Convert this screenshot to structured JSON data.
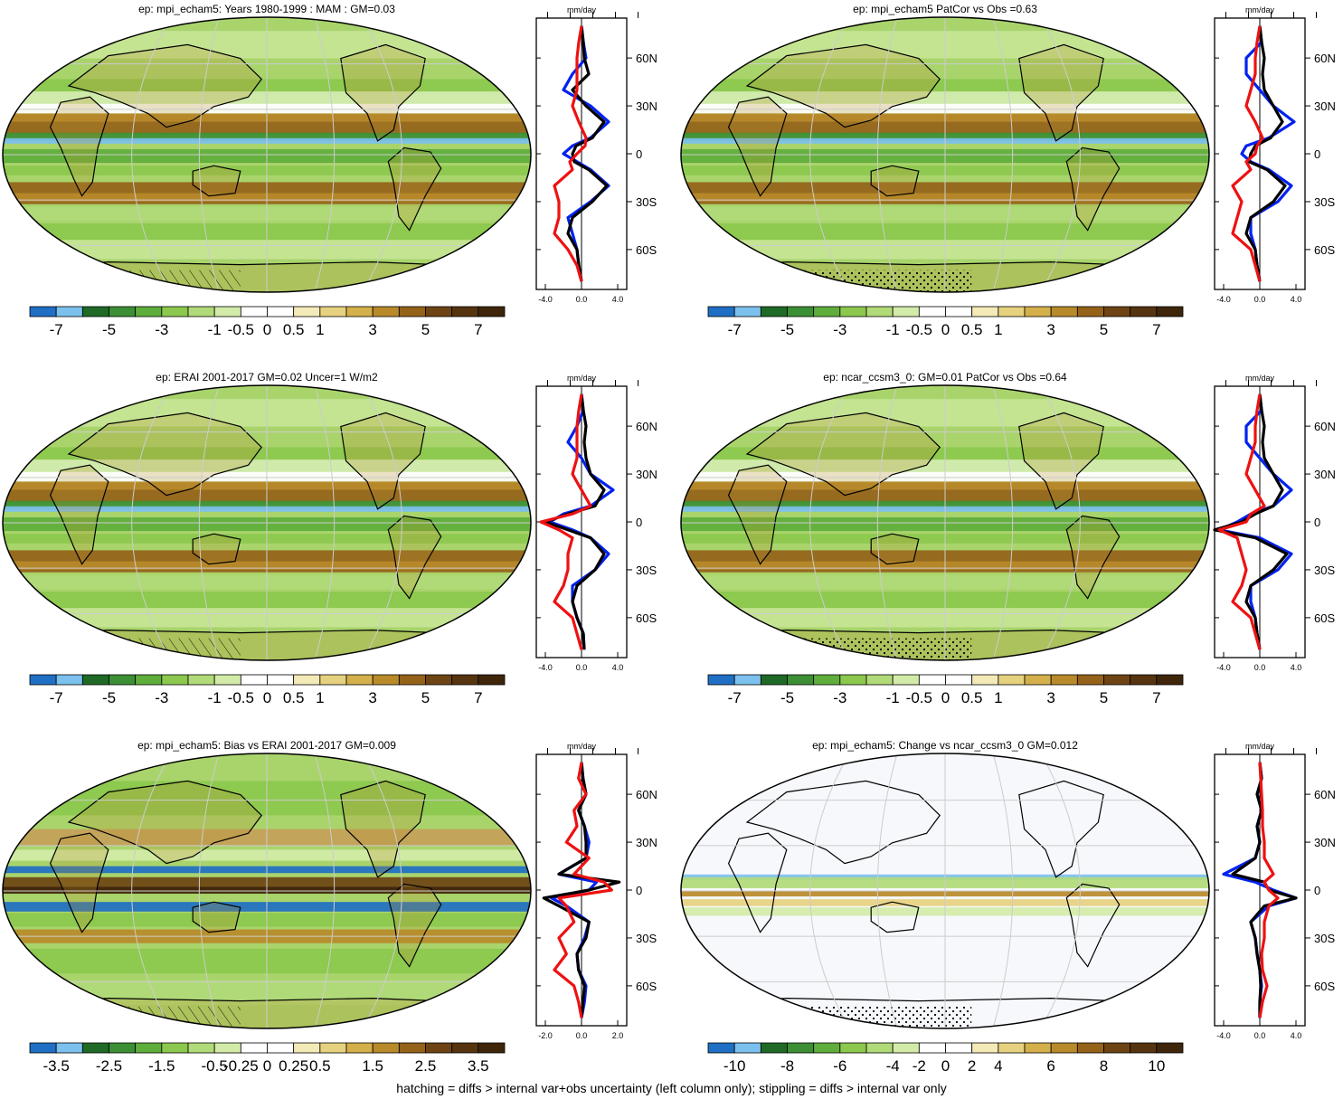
{
  "colors": {
    "palette": [
      "#1f6fc4",
      "#7cc0ee",
      "#1e6a26",
      "#3c8f34",
      "#5fae3c",
      "#8cc84e",
      "#b1da78",
      "#d3eba8",
      "#ffffff",
      "#ffffff",
      "#f3eab8",
      "#e6d17f",
      "#d4b04a",
      "#b98a2a",
      "#95621a",
      "#6e4414",
      "#563410",
      "#3f250a"
    ],
    "model_line": "#0022ee",
    "obs_line": "#000000",
    "diff_line": "#ee1111"
  },
  "footnote": "hatching = diffs > internal var+obs uncertainty (left column only); stippling = diffs > internal var only",
  "chart_data": [
    {
      "type": "heatmap",
      "title": "ep: mpi_echam5: Years 1980-1999 : MAM : GM=0.03",
      "colorbar_labels": [
        "-7",
        "-5",
        "-3",
        "-1",
        "-0.5",
        "0",
        "0.5",
        "1",
        "3",
        "5",
        "7"
      ],
      "pattern": "full",
      "profile": {
        "unit": "mm/day",
        "x_ticks": [
          "-4.0",
          "0.0",
          "4.0"
        ],
        "xlim": [
          -5,
          5
        ],
        "lat_labels": [
          "60N",
          "30N",
          "0",
          "30S",
          "60S"
        ],
        "lat": [
          80,
          70,
          60,
          50,
          40,
          30,
          20,
          10,
          5,
          0,
          -5,
          -10,
          -20,
          -30,
          -40,
          -50,
          -60,
          -70,
          -80
        ],
        "series": [
          {
            "color": "blue",
            "values": [
              0,
              0.2,
              0.5,
              -1.0,
              -2.0,
              1.0,
              3.0,
              1.0,
              -1.0,
              -2.0,
              -0.5,
              1.0,
              3.0,
              1.0,
              -1.5,
              -1.0,
              -0.5,
              -0.3,
              0
            ]
          },
          {
            "color": "black",
            "values": [
              0,
              0.2,
              0.3,
              0.8,
              -1.0,
              0.5,
              2.5,
              1.2,
              -0.6,
              -1.0,
              -0.8,
              0.8,
              2.8,
              1.2,
              -1.0,
              -1.5,
              -0.5,
              -0.3,
              0
            ]
          },
          {
            "color": "red",
            "values": [
              0,
              -0.3,
              -0.5,
              -0.5,
              -0.5,
              -1.0,
              -0.3,
              0.5,
              0.4,
              -0.5,
              -1.3,
              -1.0,
              -3.0,
              -2.5,
              -2.5,
              -3.0,
              -1.5,
              -0.5,
              0
            ]
          }
        ]
      }
    },
    {
      "type": "heatmap",
      "title": "ep: mpi_echam5 PatCor vs Obs =0.63",
      "colorbar_labels": [
        "-7",
        "-5",
        "-3",
        "-1",
        "-0.5",
        "0",
        "0.5",
        "1",
        "3",
        "5",
        "7"
      ],
      "pattern": "full",
      "profile": {
        "unit": "mm/day",
        "x_ticks": [
          "-4.0",
          "0.0",
          "4.0"
        ],
        "xlim": [
          -5,
          5
        ],
        "lat_labels": [
          "60N",
          "30N",
          "0",
          "30S",
          "60S"
        ],
        "lat": [
          80,
          70,
          60,
          50,
          40,
          30,
          20,
          10,
          5,
          0,
          -5,
          -10,
          -20,
          -30,
          -40,
          -50,
          -60,
          -70,
          -80
        ],
        "series": [
          {
            "color": "blue",
            "values": [
              0,
              0.2,
              -1.5,
              -1.5,
              0,
              1.5,
              3.8,
              1.0,
              -1.5,
              -2.0,
              -1.0,
              1.0,
              3.5,
              2.0,
              -1.0,
              -1.0,
              -0.5,
              -0.3,
              0
            ]
          },
          {
            "color": "black",
            "values": [
              0,
              0.2,
              0.5,
              0.3,
              0.5,
              1.5,
              2.5,
              1.2,
              -0.5,
              -1.0,
              -1.2,
              0.8,
              2.8,
              1.5,
              -1.0,
              -1.5,
              -0.5,
              -0.3,
              0
            ]
          },
          {
            "color": "red",
            "values": [
              0,
              -0.3,
              -0.5,
              -0.5,
              -1.0,
              -1.5,
              -0.5,
              0.3,
              -0.3,
              -0.5,
              -1.5,
              -1.0,
              -3.0,
              -2.0,
              -2.5,
              -3.0,
              -1.0,
              -0.5,
              0
            ]
          }
        ]
      }
    },
    {
      "type": "heatmap",
      "title": "ep: ERAI 2001-2017 GM=0.02 Uncer=1 W/m2",
      "colorbar_labels": [
        "-7",
        "-5",
        "-3",
        "-1",
        "-0.5",
        "0",
        "0.5",
        "1",
        "3",
        "5",
        "7"
      ],
      "pattern": "full",
      "profile": {
        "unit": "mm/day",
        "x_ticks": [
          "-4.0",
          "0.0",
          "4.0"
        ],
        "xlim": [
          -5,
          5
        ],
        "lat_labels": [
          "60N",
          "30N",
          "0",
          "30S",
          "60S"
        ],
        "lat": [
          80,
          70,
          60,
          50,
          40,
          30,
          20,
          10,
          5,
          0,
          -5,
          -10,
          -20,
          -30,
          -40,
          -50,
          -60,
          -70,
          -80
        ],
        "series": [
          {
            "color": "blue",
            "values": [
              0,
              0.2,
              -0.5,
              -1.5,
              0,
              1.0,
              3.5,
              1.0,
              -2.0,
              -3.5,
              -1.0,
              1.0,
              3.0,
              1.5,
              -1.0,
              -1.0,
              -0.5,
              0.2,
              0.3
            ]
          },
          {
            "color": "black",
            "values": [
              0,
              0.2,
              0.5,
              0.3,
              0.5,
              1.0,
              2.5,
              1.5,
              -1.5,
              -4.0,
              -1.5,
              1.0,
              2.5,
              1.5,
              -0.5,
              -1.0,
              -0.5,
              0.2,
              0.3
            ]
          },
          {
            "color": "red",
            "values": [
              0,
              -0.3,
              -0.5,
              -0.5,
              -0.5,
              -1.0,
              0,
              1.0,
              -1.0,
              -4.5,
              -2.5,
              -1.0,
              -1.5,
              -1.5,
              -2.0,
              -3.0,
              -1.0,
              -0.5,
              0
            ]
          }
        ]
      }
    },
    {
      "type": "heatmap",
      "title": "ep: ncar_ccsm3_0: GM=0.01 PatCor vs Obs =0.64",
      "colorbar_labels": [
        "-7",
        "-5",
        "-3",
        "-1",
        "-0.5",
        "0",
        "0.5",
        "1",
        "3",
        "5",
        "7"
      ],
      "pattern": "full",
      "profile": {
        "unit": "mm/day",
        "x_ticks": [
          "-4.0",
          "0.0",
          "4.0"
        ],
        "xlim": [
          -5,
          5
        ],
        "lat_labels": [
          "60N",
          "30N",
          "0",
          "30S",
          "60S"
        ],
        "lat": [
          80,
          70,
          60,
          50,
          40,
          30,
          20,
          10,
          5,
          0,
          -5,
          -10,
          -20,
          -30,
          -40,
          -50,
          -60,
          -70,
          -80
        ],
        "series": [
          {
            "color": "blue",
            "values": [
              0,
              0.2,
              -1.5,
              -1.5,
              0,
              1.5,
              3.5,
              1.5,
              -1.0,
              -2.5,
              -4.5,
              0,
              3.5,
              2.0,
              -1.0,
              -1.0,
              -0.5,
              -0.3,
              0
            ]
          },
          {
            "color": "black",
            "values": [
              0,
              0.2,
              0.5,
              0.3,
              0.5,
              1.5,
              2.5,
              1.5,
              -0.5,
              -2.0,
              -5.0,
              -0.5,
              3.0,
              1.5,
              -1.0,
              -1.5,
              -0.5,
              -0.3,
              0
            ]
          },
          {
            "color": "red",
            "values": [
              0,
              -0.3,
              -0.5,
              -0.5,
              -1.0,
              -1.5,
              -0.5,
              0.5,
              -1.0,
              -1.5,
              -4.5,
              -2.5,
              -2.0,
              -1.5,
              -2.0,
              -3.0,
              -1.0,
              -0.5,
              0
            ]
          }
        ]
      }
    },
    {
      "type": "heatmap",
      "title": "ep: mpi_echam5: Bias vs ERAI 2001-2017 GM=0.009",
      "colorbar_labels": [
        "-3.5",
        "-2.5",
        "-1.5",
        "-0.5",
        "-0.25",
        "0",
        "0.25",
        "0.5",
        "1.5",
        "2.5",
        "3.5"
      ],
      "pattern": "bias",
      "profile": {
        "unit": "mm/day",
        "x_ticks": [
          "-2.0",
          "0.0",
          "2.0"
        ],
        "xlim": [
          -3,
          3
        ],
        "lat_labels": [
          "60N",
          "30N",
          "0",
          "30S",
          "60S"
        ],
        "lat": [
          80,
          70,
          60,
          50,
          40,
          30,
          20,
          10,
          5,
          0,
          -5,
          -10,
          -20,
          -30,
          -40,
          -50,
          -60,
          -70,
          -80
        ],
        "series": [
          {
            "color": "blue",
            "values": [
              0,
              0.1,
              0.3,
              -0.2,
              0.2,
              0.5,
              0.3,
              -1.5,
              1.0,
              0.5,
              -2.0,
              -1.0,
              0.5,
              0.2,
              -0.3,
              -0.2,
              0.3,
              0.2,
              0
            ]
          },
          {
            "color": "black",
            "values": [
              0,
              0.1,
              0.3,
              -0.2,
              0.2,
              0.3,
              0.3,
              -1.5,
              2.5,
              0.5,
              -2.5,
              -1.5,
              0.5,
              0.3,
              -0.3,
              -0.2,
              0.2,
              0.1,
              0
            ]
          },
          {
            "color": "red",
            "values": [
              0,
              -0.2,
              0.3,
              -0.5,
              -0.3,
              -1.0,
              0.5,
              -0.5,
              1.5,
              2.0,
              -1.5,
              -1.0,
              -0.5,
              -1.5,
              -1.0,
              -1.8,
              -0.5,
              -0.2,
              0
            ]
          }
        ]
      }
    },
    {
      "type": "heatmap",
      "title": "ep: mpi_echam5: Change vs ncar_ccsm3_0 GM=0.012",
      "colorbar_labels": [
        "-10",
        "-8",
        "-6",
        "-4",
        "-2",
        "0",
        "2",
        "4",
        "6",
        "8",
        "10"
      ],
      "pattern": "change",
      "profile": {
        "unit": "mm/day",
        "x_ticks": [
          "-4.0",
          "0.0",
          "4.0"
        ],
        "xlim": [
          -5,
          5
        ],
        "lat_labels": [
          "60N",
          "30N",
          "0",
          "30S",
          "60S"
        ],
        "lat": [
          80,
          70,
          60,
          50,
          40,
          30,
          20,
          10,
          5,
          0,
          -5,
          -10,
          -20,
          -30,
          -40,
          -50,
          -60,
          -70,
          -80
        ],
        "series": [
          {
            "color": "blue",
            "values": [
              0,
              0.2,
              -0.3,
              0.2,
              -0.3,
              0,
              -0.5,
              -4.0,
              -0.5,
              1.5,
              4.0,
              1.0,
              -1.0,
              -0.5,
              -0.3,
              0,
              0.2,
              0,
              0
            ]
          },
          {
            "color": "black",
            "values": [
              0,
              0.2,
              -0.3,
              0.2,
              -0.3,
              0,
              -0.5,
              -3.0,
              0.5,
              1.0,
              4.0,
              0.5,
              -1.0,
              -0.5,
              -0.3,
              0,
              0.1,
              0,
              0
            ]
          },
          {
            "color": "red",
            "values": [
              0,
              0.1,
              0.2,
              0.3,
              0.3,
              0.5,
              0.5,
              1.5,
              0.5,
              1.0,
              2.0,
              1.0,
              0.5,
              0.5,
              0.2,
              0.3,
              0.8,
              0.3,
              0
            ]
          }
        ]
      }
    }
  ]
}
